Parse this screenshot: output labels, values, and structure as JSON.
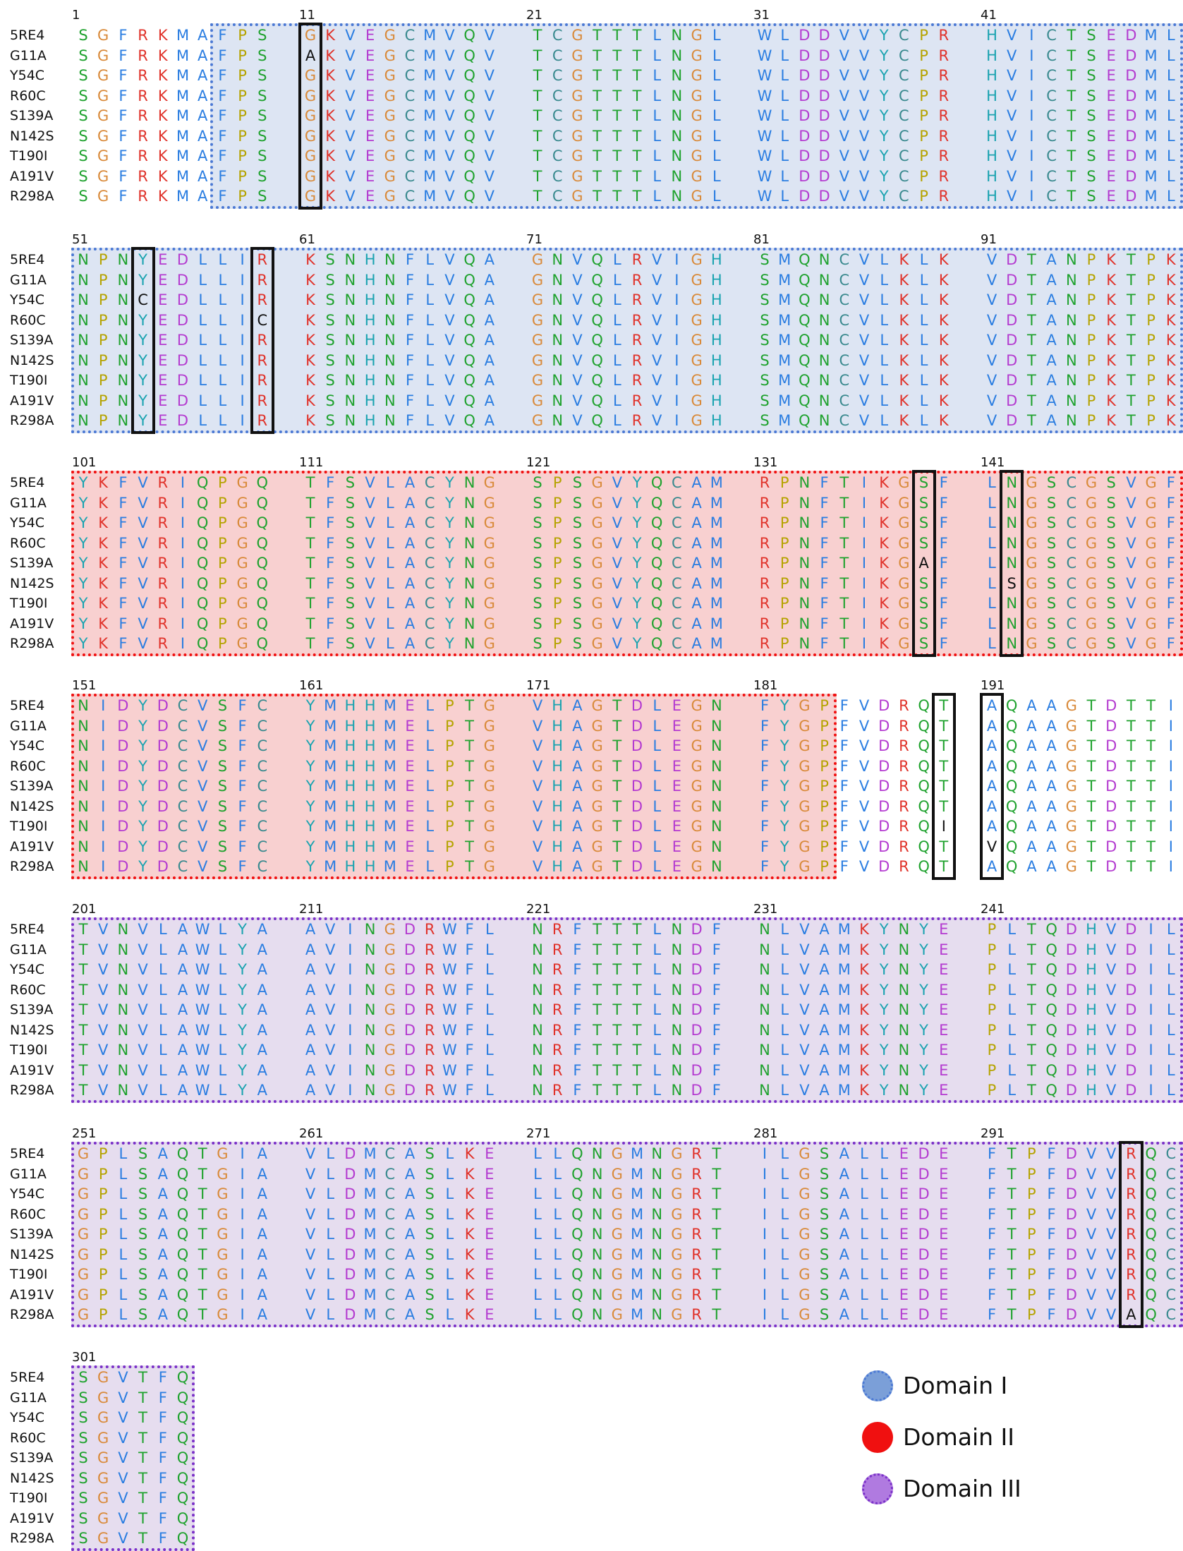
{
  "sequence_names": [
    "5RE4",
    "G11A",
    "Y54C",
    "R60C",
    "S139A",
    "N142S",
    "T190I",
    "A191V",
    "R298A"
  ],
  "reference_sequence": "SGFRKMAFPSGKVEGCMVQVTCGTTTLNGLWLDDVVYCPRHVICTSEDMLNPNYEDLLIRKSNHNFLVQAGNVQLRVIGHSMQNCVLKLKVDTANPKTPKYKFVRIQPGQTFSVLACYNGSPSGVYQCAMRPNFTIKGSFLNGSCGSVGFNIDYDCVSFCYMHHMELPTGVHAGTDLEGNFYGPFVDRQTAQAAGTDTTITVNVLAWLYAAVINGDRWFLNRFTTTLNDFNLVAMKYNYEPLTQDHVDILGPLSAQTGIAVLDMCASLKELLQNGMNGRTILGSALLEDEFTPFDVVRQCSGVTFQ",
  "variants": [
    {
      "name": "G11A",
      "position": 11,
      "residue": "A"
    },
    {
      "name": "Y54C",
      "position": 54,
      "residue": "C"
    },
    {
      "name": "R60C",
      "position": 60,
      "residue": "C"
    },
    {
      "name": "S139A",
      "position": 139,
      "residue": "A"
    },
    {
      "name": "N142S",
      "position": 142,
      "residue": "S"
    },
    {
      "name": "T190I",
      "position": 190,
      "residue": "I"
    },
    {
      "name": "A191V",
      "position": 191,
      "residue": "V"
    },
    {
      "name": "R298A",
      "position": 298,
      "residue": "A"
    }
  ],
  "block_starts": [
    "1",
    "51",
    "101",
    "151",
    "201",
    "251",
    "301"
  ],
  "domains": [
    {
      "label": "Domain I",
      "start": 8,
      "end": 100,
      "color": "#4a78d4",
      "fill": "#dde5f3"
    },
    {
      "label": "Domain II",
      "start": 101,
      "end": 184,
      "color": "#f01010",
      "fill": "#f8d0d0"
    },
    {
      "label": "Domain III",
      "start": 201,
      "end": 306,
      "color": "#7a30c8",
      "fill": "#e6ddef"
    }
  ],
  "residue_colors": {
    "A": "#2a7de1",
    "C": "#3a8a8f",
    "D": "#b43bd0",
    "E": "#b43bd0",
    "F": "#2a7de1",
    "G": "#d98a3a",
    "H": "#1aa3b0",
    "I": "#2a7de1",
    "K": "#e0322a",
    "L": "#2a7de1",
    "M": "#2a7de1",
    "N": "#1fa22e",
    "P": "#b5a300",
    "Q": "#1fa22e",
    "R": "#e0322a",
    "S": "#1fa22e",
    "T": "#1fa22e",
    "V": "#2a7de1",
    "W": "#2a7de1",
    "Y": "#1aa3b0"
  },
  "mutation_text_color": "#111111",
  "marked_positions": [
    11,
    54,
    60,
    139,
    142,
    190,
    191,
    298
  ],
  "legend": [
    {
      "label": "Domain I",
      "color": "#7b9fd8",
      "border": "#4a78d4"
    },
    {
      "label": "Domain II",
      "color": "#f01010",
      "border": "#f01010"
    },
    {
      "label": "Domain III",
      "color": "#b07ae0",
      "border": "#7a30c8"
    }
  ]
}
